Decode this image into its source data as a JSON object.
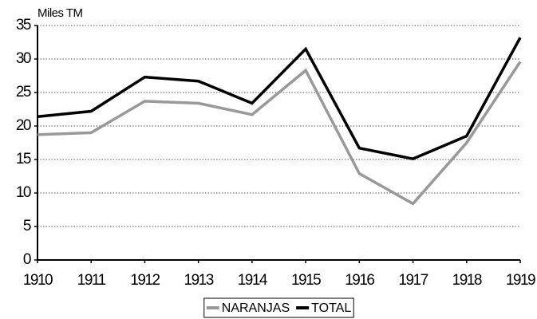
{
  "chart_data": {
    "type": "line",
    "ylabel": "Miles TM",
    "x": [
      1910,
      1911,
      1912,
      1913,
      1914,
      1915,
      1916,
      1917,
      1918,
      1919
    ],
    "xlim": [
      1910,
      1919
    ],
    "xticks": [
      1910,
      1911,
      1912,
      1913,
      1914,
      1915,
      1916,
      1917,
      1918,
      1919
    ],
    "ylim": [
      0,
      35
    ],
    "yticks": [
      0,
      5,
      10,
      15,
      20,
      25,
      30,
      35
    ],
    "grid": true,
    "legend": "bottom",
    "series": [
      {
        "name": "NARANJAS",
        "color": "#999999",
        "values": [
          18.7,
          19.0,
          23.7,
          23.4,
          21.7,
          28.3,
          12.9,
          8.4,
          17.5,
          29.6
        ]
      },
      {
        "name": "TOTAL",
        "color": "#000000",
        "values": [
          21.4,
          22.2,
          27.3,
          26.7,
          23.4,
          31.5,
          16.7,
          15.1,
          18.5,
          33.2
        ]
      }
    ]
  }
}
